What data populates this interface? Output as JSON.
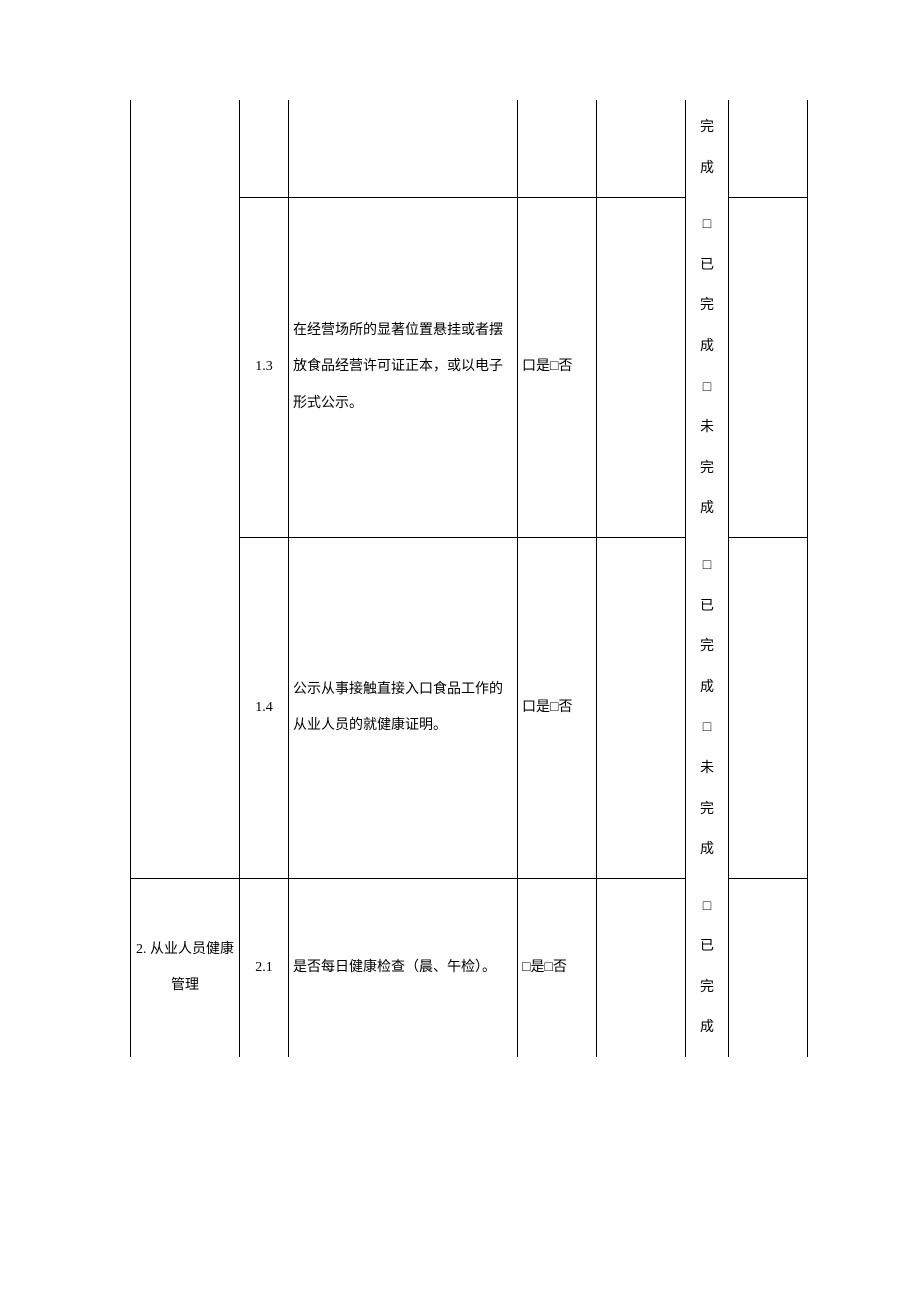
{
  "rows": [
    {
      "category": "",
      "num": "",
      "desc": "",
      "yn": "",
      "status": "完成",
      "cat_open_top": true,
      "cat_open_bottom": true,
      "num_open_top": true,
      "desc_open_top": true,
      "yn_open_top": true,
      "e1_open_top": true,
      "status_open_top": true,
      "e2_open_top": true
    },
    {
      "category": "",
      "num": "1.3",
      "desc": "在经营场所的显著位置悬挂或者摆放食品经营许可证正本，或以电子形式公示。",
      "yn": "口是□否",
      "status": "□已完成□未完成",
      "cat_open_top": true,
      "cat_open_bottom": true
    },
    {
      "category": "",
      "num": "1.4",
      "desc": "公示从事接触直接入口食品工作的从业人员的就健康证明。",
      "yn": "口是□否",
      "status": "□已完成□未完成",
      "cat_open_top": true
    },
    {
      "category": "2. 从业人员健康管理",
      "num": "2.1",
      "desc": "是否每日健康检查（晨、午检）。",
      "yn": "□是□否",
      "status": "□已完成",
      "cat_open_bottom": true,
      "num_open_bottom": true,
      "desc_open_bottom": true,
      "yn_open_bottom": true,
      "e1_open_bottom": true,
      "status_open_bottom": true,
      "e2_open_bottom": true
    }
  ]
}
